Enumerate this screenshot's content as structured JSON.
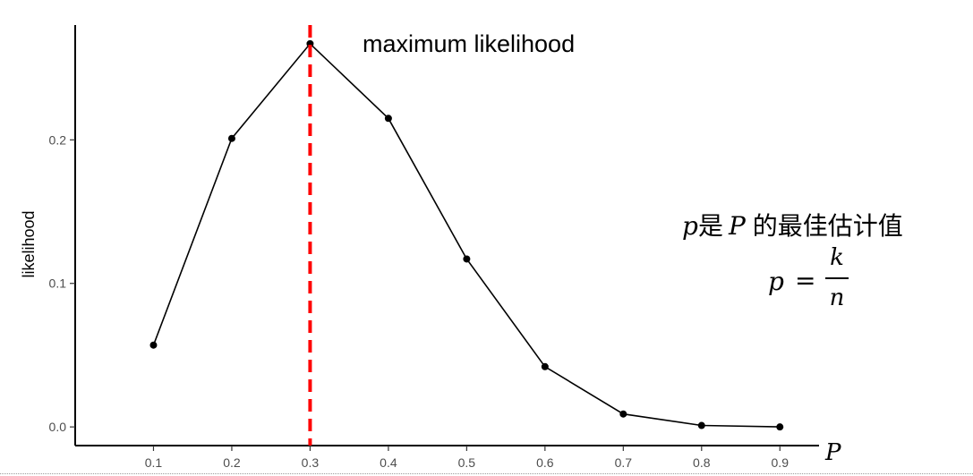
{
  "chart_data": {
    "type": "line",
    "x": [
      0.1,
      0.2,
      0.3,
      0.4,
      0.5,
      0.6,
      0.7,
      0.8,
      0.9
    ],
    "series": [
      {
        "values": [
          0.057,
          0.201,
          0.267,
          0.215,
          0.117,
          0.042,
          0.009,
          0.001,
          0.0
        ]
      }
    ],
    "x_ticks": [
      "0.1",
      "0.2",
      "0.3",
      "0.4",
      "0.5",
      "0.6",
      "0.7",
      "0.8",
      "0.9"
    ],
    "y_ticks": [
      "0.0",
      "0.1",
      "0.2"
    ],
    "y_tick_values": [
      0.0,
      0.1,
      0.2
    ],
    "xlabel": "P",
    "ylabel": "likelihood",
    "xlim": [
      0.0,
      0.95
    ],
    "ylim": [
      -0.013,
      0.28
    ],
    "grid": false,
    "vline": {
      "x": 0.3,
      "color": "#ff0000",
      "style": "dashed"
    },
    "annotations": {
      "max_label": "maximum likelihood",
      "estimate_p": "p",
      "estimate_text": "是",
      "estimate_P": "P",
      "estimate_rest": "的最佳估计值",
      "formula_lhs": "p",
      "formula_eq": "=",
      "formula_num": "k",
      "formula_den": "n"
    },
    "colors": {
      "line": "#000000",
      "points": "#000000",
      "vline": "#ff0000"
    }
  }
}
